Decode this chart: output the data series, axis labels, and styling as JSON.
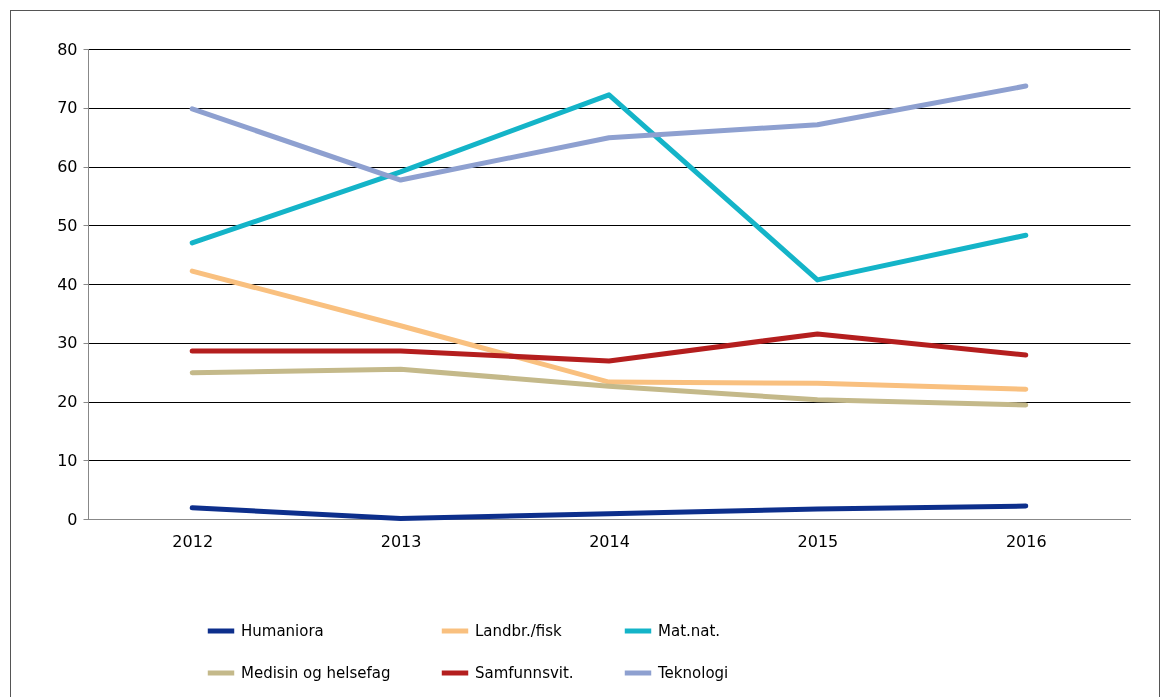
{
  "chart_data": {
    "type": "line",
    "categories": [
      "2012",
      "2013",
      "2014",
      "2015",
      "2016"
    ],
    "ylim": [
      0,
      80
    ],
    "yticks": [
      0,
      10,
      20,
      30,
      40,
      50,
      60,
      70,
      80
    ],
    "grid": "y",
    "legend": "bottom",
    "series": [
      {
        "name": "Humaniora",
        "color": "#0d2f8c",
        "values": [
          1.9,
          0.1,
          0.9,
          1.7,
          2.2
        ]
      },
      {
        "name": "Landbr./fisk",
        "color": "#f9c07f",
        "values": [
          42.2,
          32.9,
          23.3,
          23.1,
          22.1
        ]
      },
      {
        "name": "Mat.nat.",
        "color": "#14b4c8",
        "values": [
          47.0,
          59.1,
          72.2,
          40.7,
          48.3
        ]
      },
      {
        "name": "Medisin og helsefag",
        "color": "#c4b98a",
        "values": [
          24.9,
          25.5,
          22.6,
          20.3,
          19.4
        ]
      },
      {
        "name": "Samfunnsvit.",
        "color": "#b41e1e",
        "values": [
          28.6,
          28.6,
          26.9,
          31.5,
          27.9
        ]
      },
      {
        "name": "Teknologi",
        "color": "#8ea0d0",
        "values": [
          69.8,
          57.7,
          64.9,
          67.1,
          73.7
        ]
      }
    ]
  }
}
